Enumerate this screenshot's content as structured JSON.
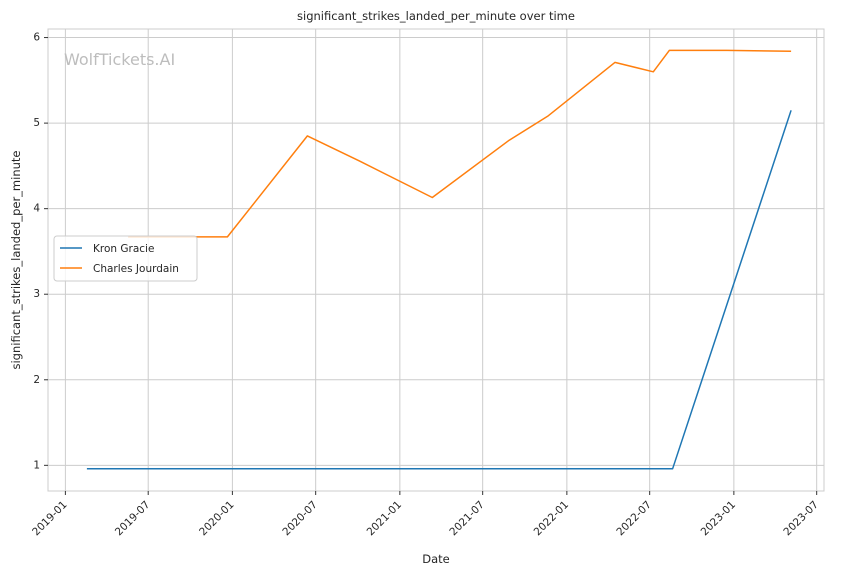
{
  "chart_data": {
    "type": "line",
    "title": "significant_strikes_landed_per_minute over time",
    "xlabel": "Date",
    "ylabel": "significant_strikes_landed_per_minute",
    "watermark": "WolfTickets.AI",
    "x_ticks": [
      "2019-01",
      "2019-07",
      "2020-01",
      "2020-07",
      "2021-01",
      "2021-07",
      "2022-01",
      "2022-07",
      "2023-01",
      "2023-07"
    ],
    "y_ticks": [
      1,
      2,
      3,
      4,
      5,
      6
    ],
    "xlim": [
      "2018-11-24",
      "2023-07-17"
    ],
    "ylim": [
      0.7,
      6.1
    ],
    "grid": true,
    "legend_position": "center-left",
    "series": [
      {
        "name": "Kron Gracie",
        "color": "#1f77b4",
        "points": [
          {
            "x": "2019-02-17",
            "y": 0.96
          },
          {
            "x": "2022-08-20",
            "y": 0.96
          },
          {
            "x": "2023-05-06",
            "y": 5.15
          }
        ]
      },
      {
        "name": "Charles Jourdain",
        "color": "#ff7f0e",
        "points": [
          {
            "x": "2019-05-18",
            "y": 3.67
          },
          {
            "x": "2019-12-21",
            "y": 3.67
          },
          {
            "x": "2020-06-13",
            "y": 4.85
          },
          {
            "x": "2020-10-04",
            "y": 4.56
          },
          {
            "x": "2021-03-13",
            "y": 4.13
          },
          {
            "x": "2021-08-28",
            "y": 4.8
          },
          {
            "x": "2021-11-20",
            "y": 5.08
          },
          {
            "x": "2022-04-16",
            "y": 5.71
          },
          {
            "x": "2022-07-09",
            "y": 5.6
          },
          {
            "x": "2022-08-13",
            "y": 5.85
          },
          {
            "x": "2022-12-17",
            "y": 5.85
          },
          {
            "x": "2023-05-06",
            "y": 5.84
          }
        ]
      }
    ]
  }
}
